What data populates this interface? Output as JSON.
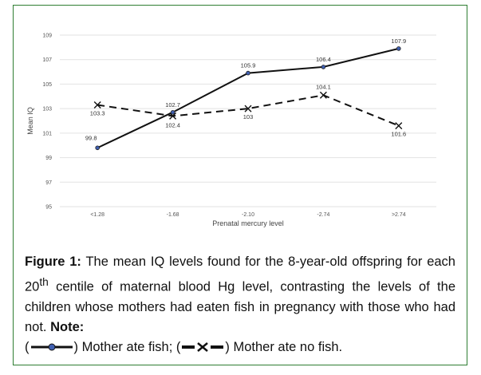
{
  "chart_data": {
    "type": "line",
    "title": "",
    "xlabel": "Prenatal mercury level",
    "ylabel": "Mean IQ",
    "categories": [
      "<1.28",
      "-1.68",
      "-2.10",
      "-2.74",
      ">2.74"
    ],
    "ylim": [
      95,
      109
    ],
    "yticks": [
      95,
      97,
      99,
      101,
      103,
      105,
      107,
      109
    ],
    "grid": true,
    "series": [
      {
        "name": "Mother ate fish",
        "values": [
          99.8,
          102.7,
          105.9,
          106.4,
          107.9
        ],
        "labels": [
          "99.8",
          "102.7",
          "105.9",
          "106.4",
          "107.9"
        ],
        "color": "#111111",
        "marker": "circle",
        "marker_color": "#3f5fb0",
        "dash": "solid"
      },
      {
        "name": "Mother ate no fish",
        "values": [
          103.3,
          102.4,
          103,
          104.1,
          101.6
        ],
        "labels": [
          "103.3",
          "102.4",
          "103",
          "104.1",
          "101.6"
        ],
        "color": "#111111",
        "marker": "x",
        "dash": "dashed"
      }
    ]
  },
  "caption": {
    "figure_label": "Figure 1:",
    "text_part1": " The mean IQ levels found for the 8-year-old offspring for each 20",
    "superscript": "th",
    "text_part2": " centile of maternal blood Hg level, contrasting the levels of the children whose mothers had eaten fish in pregnancy with those who had not. ",
    "note_label": "Note:",
    "open_paren": "(",
    "legend1": ") Mother ate fish; (",
    "legend2": ") Mother ate no fish."
  }
}
